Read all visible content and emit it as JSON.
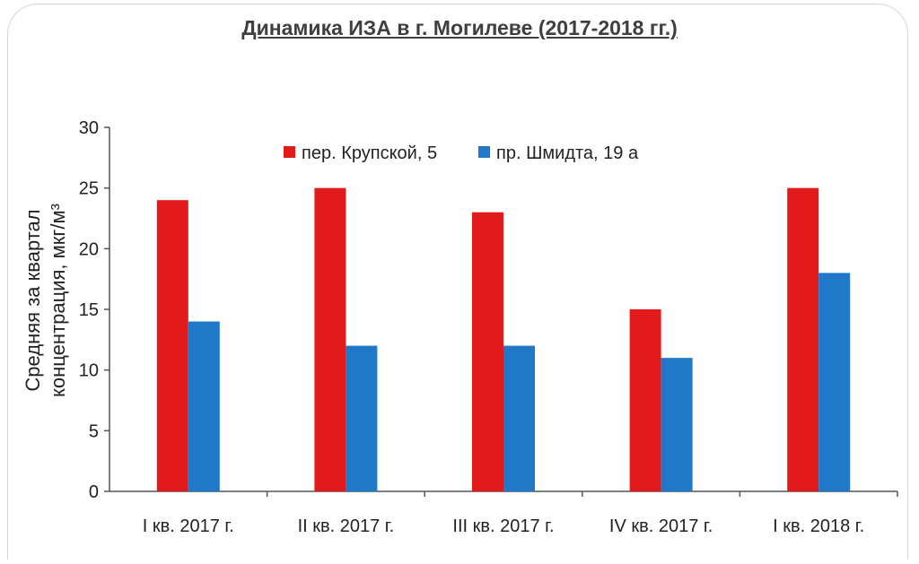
{
  "slide": {
    "title": "Динамика ИЗА в г. Могилеве (2017-2018 гг.)"
  },
  "colors": {
    "series1": "#e31a1c",
    "series2": "#1f78c8",
    "axis": "#555555",
    "text": "#222222"
  },
  "chart_data": {
    "type": "bar",
    "categories": [
      "I кв. 2017 г.",
      "II кв. 2017 г.",
      "III кв. 2017 г.",
      "IV кв. 2017 г.",
      "I кв. 2018 г."
    ],
    "series": [
      {
        "name": "пер. Крупской, 5",
        "values": [
          24,
          25,
          23,
          15,
          25
        ]
      },
      {
        "name": "пр. Шмидта, 19 а",
        "values": [
          14,
          12,
          12,
          11,
          18
        ]
      }
    ],
    "ylabel_line1": "Средняя за квартал",
    "ylabel_line2": "концентрация, мкг/м³",
    "ylim": [
      0,
      30
    ],
    "yticks": [
      "0",
      "5",
      "10",
      "15",
      "20",
      "25",
      "30"
    ],
    "legend_position": "top",
    "grid": false
  }
}
